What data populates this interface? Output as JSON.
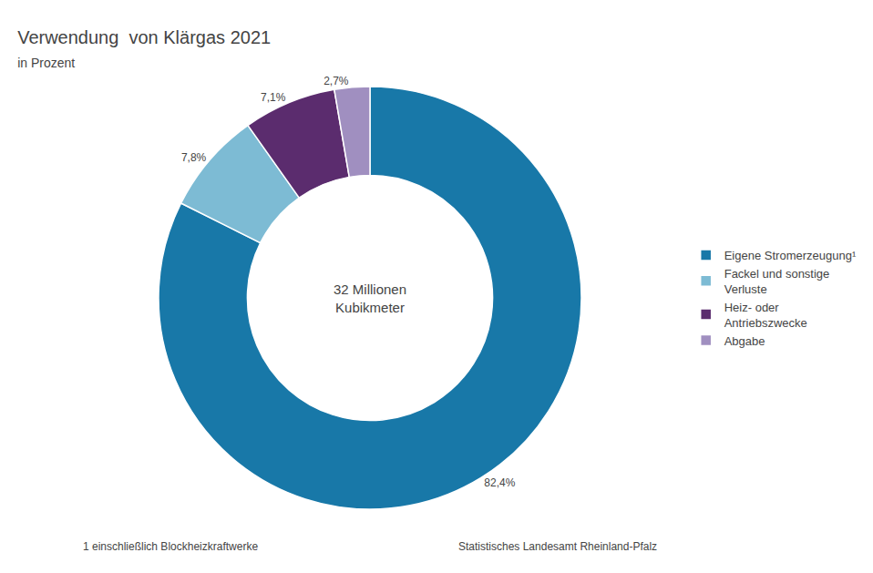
{
  "chart_data": {
    "type": "pie",
    "title": "Verwendung  von Klärgas 2021",
    "subtitle": "in Prozent",
    "center_text": "32 Millionen\nKubikmeter",
    "categories": [
      "Eigene Stromerzeugung¹",
      "Fackel und sonstige\nVerluste",
      "Heiz- oder\nAntriebszwecke",
      "Abgabe"
    ],
    "values": [
      82.4,
      7.8,
      7.1,
      2.7
    ],
    "value_labels": [
      "82,4%",
      "7,8%",
      "7,1%",
      "2,7%"
    ],
    "colors": [
      "#1878a8",
      "#7dbbd4",
      "#5b2c6e",
      "#a08fc0"
    ],
    "data_labels": true,
    "legend": "right",
    "footnote": "1 einschließlich Blockheizkraftwerke",
    "source": "Statistisches Landesamt Rheinland-Pfalz"
  }
}
